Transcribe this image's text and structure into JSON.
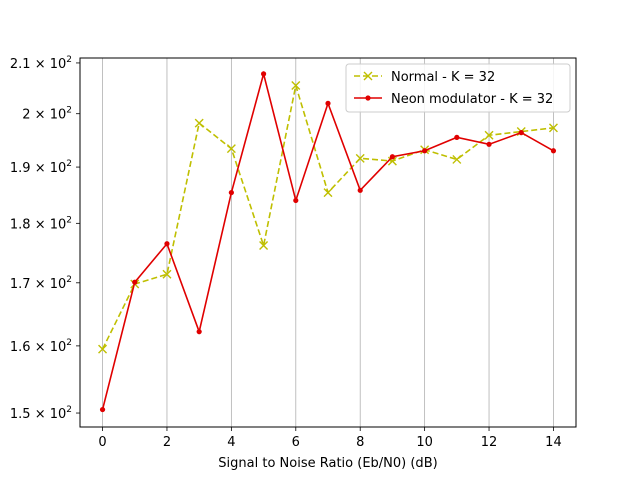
{
  "chart_data": {
    "type": "line",
    "title": "",
    "xlabel": "Signal to Noise Ratio (Eb/N0) (dB)",
    "ylabel": "",
    "xlim": [
      -0.7,
      14.7
    ],
    "ylim": [
      148,
      211
    ],
    "y_scale": "log",
    "x_ticks": [
      0,
      2,
      4,
      6,
      8,
      10,
      12,
      14
    ],
    "x_tick_labels": [
      "0",
      "2",
      "4",
      "6",
      "8",
      "10",
      "12",
      "14"
    ],
    "y_ticks": [
      150,
      160,
      170,
      180,
      190,
      200,
      210
    ],
    "y_tick_labels": [
      {
        "mantissa": "1.5",
        "base": "10",
        "exp": "2"
      },
      {
        "mantissa": "1.6",
        "base": "10",
        "exp": "2"
      },
      {
        "mantissa": "1.7",
        "base": "10",
        "exp": "2"
      },
      {
        "mantissa": "1.8",
        "base": "10",
        "exp": "2"
      },
      {
        "mantissa": "1.9",
        "base": "10",
        "exp": "2"
      },
      {
        "mantissa": "2",
        "base": "10",
        "exp": "2"
      },
      {
        "mantissa": "2.1",
        "base": "10",
        "exp": "2"
      }
    ],
    "grid": "x-vertical",
    "legend_position": "top-right",
    "x": [
      0,
      1,
      2,
      3,
      4,
      5,
      6,
      7,
      8,
      9,
      10,
      11,
      12,
      13,
      14
    ],
    "series": [
      {
        "name": "Normal - K = 32",
        "color": "#bfbf00",
        "line_style": "dashed",
        "marker": "x",
        "values": [
          159.5,
          169.8,
          171.4,
          198.2,
          193.4,
          176.2,
          205.5,
          185.4,
          191.6,
          191.1,
          193.2,
          191.4,
          195.9,
          196.6,
          197.3
        ]
      },
      {
        "name": "Neon modulator - K = 32",
        "color": "#e00000",
        "line_style": "solid",
        "marker": "dot",
        "values": [
          150.5,
          170.1,
          176.5,
          162.2,
          185.4,
          207.8,
          184.0,
          202.0,
          185.8,
          191.9,
          193.0,
          195.5,
          194.2,
          196.4,
          193.0
        ]
      }
    ]
  }
}
